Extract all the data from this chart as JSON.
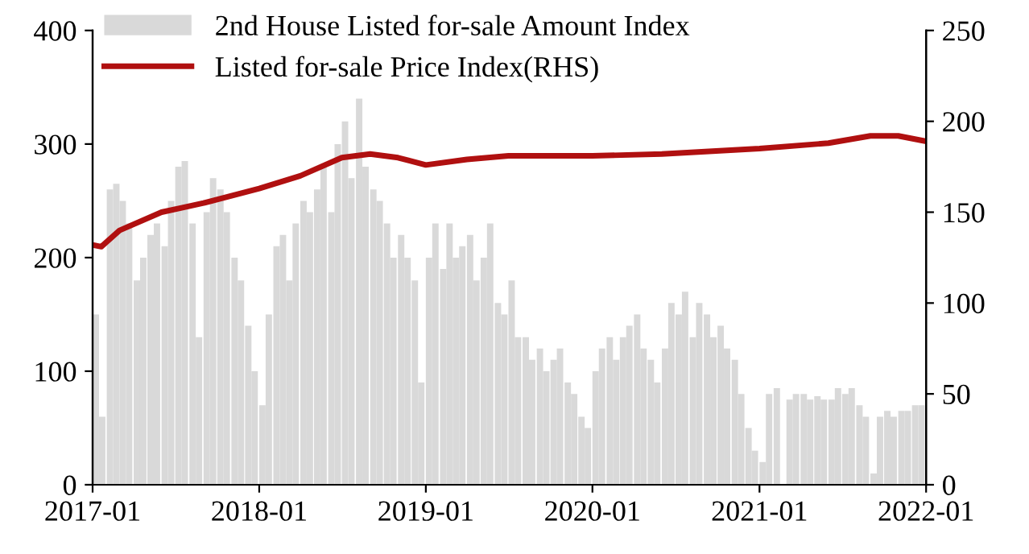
{
  "chart_data": {
    "type": "bar",
    "xlim": [
      "2017-01",
      "2022-01"
    ],
    "xticks": [
      "2017-01",
      "2018-01",
      "2019-01",
      "2020-01",
      "2021-01",
      "2022-01"
    ],
    "ylim": [
      0,
      400
    ],
    "yticks": [
      0,
      100,
      200,
      300,
      400
    ],
    "y2lim": [
      0,
      250
    ],
    "y2ticks": [
      0,
      50,
      100,
      150,
      200,
      250
    ],
    "legend": "top left",
    "grid": false,
    "x": [
      "2017-01-01",
      "2017-01-15",
      "2017-02-01",
      "2017-02-15",
      "2017-03-01",
      "2017-03-15",
      "2017-04-01",
      "2017-04-15",
      "2017-05-01",
      "2017-05-15",
      "2017-06-01",
      "2017-06-15",
      "2017-07-01",
      "2017-07-15",
      "2017-08-01",
      "2017-08-15",
      "2017-09-01",
      "2017-09-15",
      "2017-10-01",
      "2017-10-15",
      "2017-11-01",
      "2017-11-15",
      "2017-12-01",
      "2017-12-15",
      "2018-01-01",
      "2018-01-15",
      "2018-02-01",
      "2018-02-15",
      "2018-03-01",
      "2018-03-15",
      "2018-04-01",
      "2018-04-15",
      "2018-05-01",
      "2018-05-15",
      "2018-06-01",
      "2018-06-15",
      "2018-07-01",
      "2018-07-15",
      "2018-08-01",
      "2018-08-15",
      "2018-09-01",
      "2018-09-15",
      "2018-10-01",
      "2018-10-15",
      "2018-11-01",
      "2018-11-15",
      "2018-12-01",
      "2018-12-15",
      "2019-01-01",
      "2019-01-15",
      "2019-02-01",
      "2019-02-15",
      "2019-03-01",
      "2019-03-15",
      "2019-04-01",
      "2019-04-15",
      "2019-05-01",
      "2019-05-15",
      "2019-06-01",
      "2019-06-15",
      "2019-07-01",
      "2019-07-15",
      "2019-08-01",
      "2019-08-15",
      "2019-09-01",
      "2019-09-15",
      "2019-10-01",
      "2019-10-15",
      "2019-11-01",
      "2019-11-15",
      "2019-12-01",
      "2019-12-15",
      "2020-01-01",
      "2020-01-15",
      "2020-02-01",
      "2020-02-15",
      "2020-03-01",
      "2020-03-15",
      "2020-04-01",
      "2020-04-15",
      "2020-05-01",
      "2020-05-15",
      "2020-06-01",
      "2020-06-15",
      "2020-07-01",
      "2020-07-15",
      "2020-08-01",
      "2020-08-15",
      "2020-09-01",
      "2020-09-15",
      "2020-10-01",
      "2020-10-15",
      "2020-11-01",
      "2020-11-15",
      "2020-12-01",
      "2020-12-15",
      "2021-01-01",
      "2021-01-15",
      "2021-02-01",
      "2021-02-15",
      "2021-03-01",
      "2021-03-15",
      "2021-04-01",
      "2021-04-15",
      "2021-05-01",
      "2021-05-15",
      "2021-06-01",
      "2021-06-15",
      "2021-07-01",
      "2021-07-15",
      "2021-08-01",
      "2021-08-15",
      "2021-09-01",
      "2021-09-15",
      "2021-10-01",
      "2021-10-15",
      "2021-11-01",
      "2021-11-15",
      "2021-12-01",
      "2021-12-15"
    ],
    "series": [
      {
        "name": "2nd House Listed for-sale Amount Index",
        "color": "#d9d9d9",
        "values": [
          150,
          60,
          260,
          265,
          250,
          230,
          180,
          200,
          220,
          230,
          210,
          250,
          280,
          285,
          230,
          130,
          240,
          270,
          260,
          240,
          200,
          180,
          140,
          100,
          70,
          150,
          210,
          220,
          180,
          230,
          250,
          240,
          260,
          280,
          240,
          300,
          320,
          270,
          340,
          280,
          260,
          250,
          230,
          200,
          220,
          200,
          180,
          90,
          200,
          230,
          190,
          230,
          200,
          210,
          220,
          180,
          200,
          230,
          160,
          150,
          180,
          130,
          130,
          110,
          120,
          100,
          110,
          120,
          90,
          80,
          60,
          50,
          100,
          120,
          130,
          110,
          130,
          140,
          150,
          120,
          110,
          90,
          120,
          160,
          150,
          170,
          130,
          160,
          150,
          130,
          140,
          120,
          110,
          80,
          50,
          30,
          20,
          80,
          85,
          0,
          75,
          80,
          80,
          75,
          78,
          75,
          75,
          85,
          80,
          85,
          70,
          60,
          10,
          60,
          65,
          60,
          65,
          65,
          70,
          70
        ]
      },
      {
        "name": "Listed for-sale Price Index(RHS)",
        "type": "line",
        "axis": "y2",
        "color": "#b01010",
        "x": [
          "2017-01-01",
          "2017-01-20",
          "2017-03-01",
          "2017-06-01",
          "2017-09-01",
          "2018-01-01",
          "2018-04-01",
          "2018-07-01",
          "2018-09-01",
          "2018-11-01",
          "2019-01-01",
          "2019-04-01",
          "2019-07-01",
          "2019-10-01",
          "2020-01-01",
          "2020-06-01",
          "2021-01-01",
          "2021-06-01",
          "2021-09-01",
          "2021-11-01",
          "2022-01-01"
        ],
        "values": [
          132,
          131,
          140,
          150,
          155,
          163,
          170,
          180,
          182,
          180,
          176,
          179,
          181,
          181,
          181,
          182,
          185,
          188,
          192,
          192,
          189
        ]
      }
    ]
  }
}
